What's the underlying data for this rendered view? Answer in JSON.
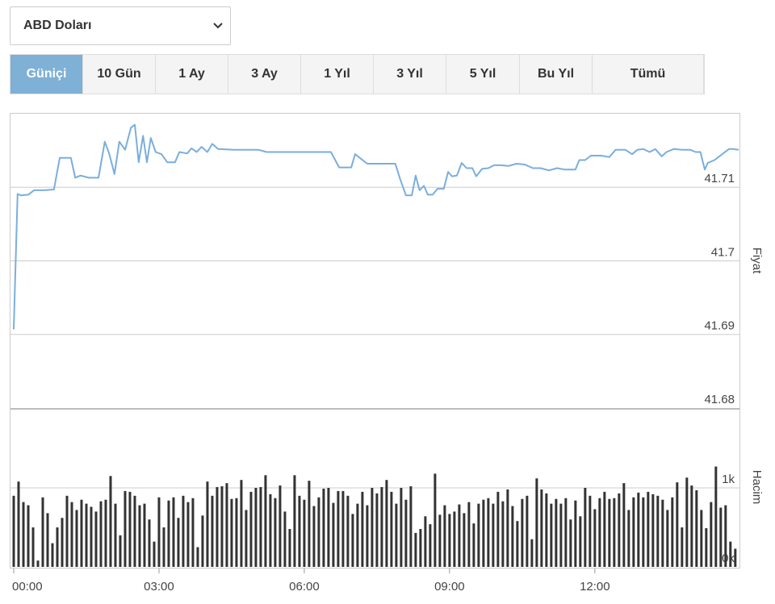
{
  "dropdown": {
    "label": "ABD Doları"
  },
  "tabs": [
    {
      "label": "Güniçi",
      "active": true
    },
    {
      "label": "10 Gün",
      "active": false
    },
    {
      "label": "1 Ay",
      "active": false
    },
    {
      "label": "3 Ay",
      "active": false
    },
    {
      "label": "1 Yıl",
      "active": false
    },
    {
      "label": "3 Yıl",
      "active": false
    },
    {
      "label": "5 Yıl",
      "active": false
    },
    {
      "label": "Bu Yıl",
      "active": false
    },
    {
      "label": "Tümü",
      "active": false
    }
  ],
  "chart_data": [
    {
      "type": "line",
      "y_label": "Fiyat",
      "color": "#7aaedd",
      "grid": true,
      "xlim": [
        0,
        14.97
      ],
      "ylim": [
        41.68,
        41.72
      ],
      "yticks": [
        41.68,
        41.69,
        41.7,
        41.71
      ],
      "x": [
        0,
        0.08,
        0.15,
        0.3,
        0.42,
        0.63,
        0.83,
        0.95,
        1.18,
        1.27,
        1.38,
        1.55,
        1.75,
        1.88,
        1.97,
        2.08,
        2.18,
        2.3,
        2.42,
        2.5,
        2.58,
        2.67,
        2.75,
        2.83,
        2.93,
        3.05,
        3.17,
        3.33,
        3.42,
        3.58,
        3.67,
        3.78,
        3.88,
        4,
        4.1,
        4.22,
        4.55,
        5.05,
        5.22,
        5.72,
        6.55,
        6.72,
        6.97,
        7.05,
        7.3,
        7.72,
        7.88,
        7.97,
        8.1,
        8.22,
        8.3,
        8.38,
        8.47,
        8.55,
        8.65,
        8.75,
        8.88,
        8.97,
        9.05,
        9.15,
        9.25,
        9.35,
        9.47,
        9.55,
        9.67,
        9.8,
        9.92,
        10.05,
        10.22,
        10.38,
        10.55,
        10.72,
        10.88,
        11.05,
        11.22,
        11.38,
        11.6,
        11.68,
        11.8,
        11.92,
        12.13,
        12.3,
        12.43,
        12.63,
        12.77,
        12.88,
        13,
        13.13,
        13.25,
        13.38,
        13.48,
        13.63,
        13.8,
        13.97,
        14.08,
        14.18,
        14.27,
        14.33,
        14.47,
        14.63,
        14.77,
        14.85,
        14.97
      ],
      "values": [
        41.6907,
        41.7091,
        41.7089,
        41.709,
        41.7096,
        41.7096,
        41.7097,
        41.714,
        41.714,
        41.7113,
        41.7116,
        41.7113,
        41.7113,
        41.7162,
        41.7146,
        41.7118,
        41.7162,
        41.7151,
        41.7181,
        41.7185,
        41.7134,
        41.717,
        41.7134,
        41.7167,
        41.7148,
        41.7145,
        41.7134,
        41.7134,
        41.7148,
        41.7146,
        41.7153,
        41.7148,
        41.7155,
        41.7148,
        41.7159,
        41.7152,
        41.7151,
        41.7151,
        41.7148,
        41.7148,
        41.7148,
        41.7127,
        41.7127,
        41.7145,
        41.7132,
        41.7132,
        41.7132,
        41.7113,
        41.7089,
        41.7089,
        41.7116,
        41.7096,
        41.7102,
        41.709,
        41.709,
        41.7098,
        41.7098,
        41.7121,
        41.7115,
        41.7116,
        41.7133,
        41.7126,
        41.7126,
        41.7115,
        41.7125,
        41.7126,
        41.713,
        41.713,
        41.7129,
        41.7132,
        41.7131,
        41.7126,
        41.7126,
        41.7123,
        41.7126,
        41.7124,
        41.7124,
        41.7137,
        41.7137,
        41.7143,
        41.7143,
        41.7141,
        41.7151,
        41.7151,
        41.7145,
        41.7151,
        41.7152,
        41.7148,
        41.7152,
        41.7142,
        41.7148,
        41.7152,
        41.7151,
        41.7151,
        41.7148,
        41.7148,
        41.7124,
        41.7133,
        41.7137,
        41.7145,
        41.7152,
        41.7152,
        41.7151
      ]
    },
    {
      "type": "bar",
      "y_label": "Hacim",
      "color": "#333333",
      "grid": true,
      "xlim": [
        0,
        14.97
      ],
      "ylim": [
        0,
        2000
      ],
      "yticks": [
        {
          "value": 0,
          "label": "0k"
        },
        {
          "value": 1000,
          "label": "1k"
        }
      ],
      "xticks": [
        {
          "value": 0,
          "label": "00:00"
        },
        {
          "value": 3,
          "label": "03:00"
        },
        {
          "value": 6,
          "label": "06:00"
        },
        {
          "value": 9,
          "label": "09:00"
        },
        {
          "value": 12,
          "label": "12:00"
        }
      ],
      "x": [
        0,
        0.1,
        0.2,
        0.3,
        0.4,
        0.5,
        0.6,
        0.7,
        0.8,
        0.9,
        1,
        1.1,
        1.2,
        1.3,
        1.4,
        1.5,
        1.6,
        1.7,
        1.8,
        1.9,
        2,
        2.1,
        2.2,
        2.3,
        2.4,
        2.5,
        2.6,
        2.7,
        2.8,
        2.9,
        3,
        3.1,
        3.2,
        3.3,
        3.4,
        3.5,
        3.6,
        3.7,
        3.8,
        3.9,
        4,
        4.1,
        4.2,
        4.3,
        4.4,
        4.5,
        4.6,
        4.7,
        4.8,
        4.9,
        5,
        5.1,
        5.2,
        5.3,
        5.4,
        5.5,
        5.6,
        5.7,
        5.8,
        5.9,
        6,
        6.1,
        6.2,
        6.3,
        6.4,
        6.5,
        6.6,
        6.7,
        6.8,
        6.9,
        7,
        7.1,
        7.2,
        7.3,
        7.4,
        7.5,
        7.6,
        7.7,
        7.8,
        7.9,
        8,
        8.1,
        8.2,
        8.3,
        8.4,
        8.5,
        8.6,
        8.7,
        8.8,
        8.9,
        9,
        9.1,
        9.2,
        9.3,
        9.4,
        9.5,
        9.6,
        9.7,
        9.8,
        9.9,
        10,
        10.1,
        10.2,
        10.3,
        10.4,
        10.5,
        10.6,
        10.7,
        10.8,
        10.9,
        11,
        11.1,
        11.2,
        11.3,
        11.4,
        11.5,
        11.6,
        11.7,
        11.8,
        11.9,
        12,
        12.1,
        12.2,
        12.3,
        12.4,
        12.5,
        12.6,
        12.7,
        12.8,
        12.9,
        13,
        13.1,
        13.2,
        13.3,
        13.4,
        13.5,
        13.6,
        13.7,
        13.8,
        13.9,
        14,
        14.1,
        14.2,
        14.3,
        14.4,
        14.5,
        14.6,
        14.7,
        14.8,
        14.9
      ],
      "values": [
        900,
        1080,
        820,
        780,
        500,
        80,
        880,
        680,
        300,
        500,
        620,
        900,
        820,
        720,
        850,
        800,
        760,
        700,
        830,
        850,
        1150,
        800,
        400,
        960,
        950,
        900,
        780,
        800,
        600,
        320,
        880,
        500,
        840,
        880,
        620,
        900,
        820,
        870,
        250,
        650,
        1080,
        900,
        1010,
        1020,
        1060,
        860,
        870,
        1100,
        720,
        950,
        1000,
        1010,
        1160,
        920,
        870,
        1030,
        700,
        480,
        1160,
        900,
        850,
        1090,
        770,
        880,
        990,
        1000,
        810,
        960,
        960,
        900,
        670,
        800,
        950,
        780,
        1000,
        930,
        1010,
        1100,
        950,
        800,
        1000,
        850,
        1020,
        430,
        480,
        640,
        540,
        1180,
        660,
        780,
        670,
        700,
        790,
        680,
        820,
        550,
        800,
        850,
        870,
        800,
        950,
        830,
        980,
        770,
        580,
        860,
        900,
        350,
        1120,
        980,
        930,
        800,
        860,
        800,
        870,
        600,
        840,
        640,
        1000,
        900,
        730,
        870,
        950,
        860,
        870,
        930,
        1060,
        720,
        880,
        940,
        880,
        950,
        920,
        900,
        850,
        720,
        880,
        1070,
        500,
        1130,
        1030,
        970,
        720,
        490,
        820,
        1270,
        750,
        780,
        320,
        230
      ]
    }
  ]
}
